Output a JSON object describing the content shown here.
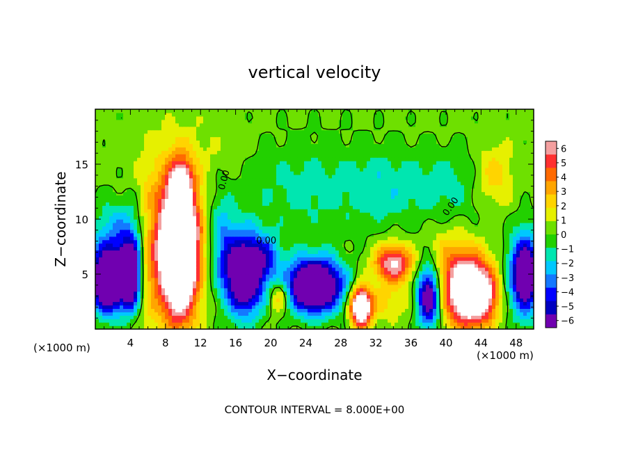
{
  "chart_data": {
    "type": "heatmap",
    "title": "vertical velocity",
    "xlabel": "X−coordinate",
    "ylabel": "Z−coordinate",
    "x_unit_left": "(×1000 m)",
    "x_unit_right": "(×1000 m)",
    "footer": "CONTOUR INTERVAL = 8.000E+00",
    "xlim": [
      0,
      50
    ],
    "ylim": [
      0,
      20
    ],
    "x_ticks": [
      "4",
      "8",
      "12",
      "16",
      "20",
      "24",
      "28",
      "32",
      "36",
      "40",
      "44",
      "48"
    ],
    "y_ticks": [
      "5",
      "10",
      "15"
    ],
    "colorbar": {
      "range": [
        -6,
        6
      ],
      "tick_labels": [
        "6",
        "5",
        "4",
        "3",
        "2",
        "1",
        "0",
        "−1",
        "−2",
        "−3",
        "−4",
        "−5",
        "−6"
      ],
      "colors": [
        "#f4a0a0",
        "#ff3030",
        "#ff6a00",
        "#ffa500",
        "#ffd400",
        "#e6f000",
        "#6ee000",
        "#22d000",
        "#00e6b0",
        "#00c8ff",
        "#1478ff",
        "#0000ff",
        "#0000c0",
        "#7000b0"
      ]
    },
    "contour_labels": [
      "0.00",
      "0.00",
      "0.00"
    ],
    "features": [
      {
        "x": 1.5,
        "z": 4.5,
        "sx": 1.4,
        "sz": 2.0,
        "w": -10
      },
      {
        "x": 4.0,
        "z": 5.0,
        "sx": 0.8,
        "sz": 2.0,
        "w": -9
      },
      {
        "x": 6.2,
        "z": 8.0,
        "sx": 1.0,
        "sz": 5.0,
        "w": 2.5
      },
      {
        "x": 9.5,
        "z": 7.5,
        "sx": 1.5,
        "sz": 4.2,
        "w": 15
      },
      {
        "x": 9.8,
        "z": 13.5,
        "sx": 0.8,
        "sz": 1.2,
        "w": 4
      },
      {
        "x": 17.0,
        "z": 5.0,
        "sx": 1.5,
        "sz": 2.5,
        "w": -9
      },
      {
        "x": 19.5,
        "z": 6.5,
        "sx": 1.2,
        "sz": 1.5,
        "w": -3
      },
      {
        "x": 21.0,
        "z": 3.0,
        "sx": 0.8,
        "sz": 1.0,
        "w": 3
      },
      {
        "x": 25.0,
        "z": 4.0,
        "sx": 2.2,
        "sz": 1.7,
        "w": -10
      },
      {
        "x": 30.3,
        "z": 2.0,
        "sx": 0.8,
        "sz": 1.2,
        "w": 10
      },
      {
        "x": 34.0,
        "z": 6.0,
        "sx": 1.5,
        "sz": 1.2,
        "w": 6
      },
      {
        "x": 38.0,
        "z": 3.0,
        "sx": 0.9,
        "sz": 2.0,
        "w": -7
      },
      {
        "x": 42.5,
        "z": 3.5,
        "sx": 1.8,
        "sz": 2.2,
        "w": 10
      },
      {
        "x": 44.5,
        "z": 3.0,
        "sx": 1.0,
        "sz": 1.5,
        "w": 3
      },
      {
        "x": 49.0,
        "z": 5.0,
        "sx": 1.2,
        "sz": 2.5,
        "w": -8
      },
      {
        "x": 33.0,
        "z": 2.5,
        "sx": 1.8,
        "sz": 1.2,
        "w": 1.5
      },
      {
        "x": 11.5,
        "z": 16.0,
        "sx": 4.0,
        "sz": 2.0,
        "w": 0.6
      },
      {
        "x": 24.0,
        "z": 13.0,
        "sx": 5.0,
        "sz": 3.0,
        "w": -1.5
      },
      {
        "x": 33.0,
        "z": 13.0,
        "sx": 3.0,
        "sz": 2.5,
        "w": -1.5
      },
      {
        "x": 40.0,
        "z": 13.0,
        "sx": 3.0,
        "sz": 2.5,
        "w": -1.5
      },
      {
        "x": 45.5,
        "z": 14.0,
        "sx": 1.5,
        "sz": 2.0,
        "w": 2.0
      },
      {
        "x": 3.0,
        "z": 9.0,
        "sx": 2.5,
        "sz": 2.0,
        "w": -2.5
      },
      {
        "x": 14.5,
        "z": 8.0,
        "sx": 1.0,
        "sz": 3.0,
        "w": -2.5
      },
      {
        "x": 40.0,
        "z": 7.0,
        "sx": 1.5,
        "sz": 2.0,
        "w": 1.5
      }
    ]
  }
}
